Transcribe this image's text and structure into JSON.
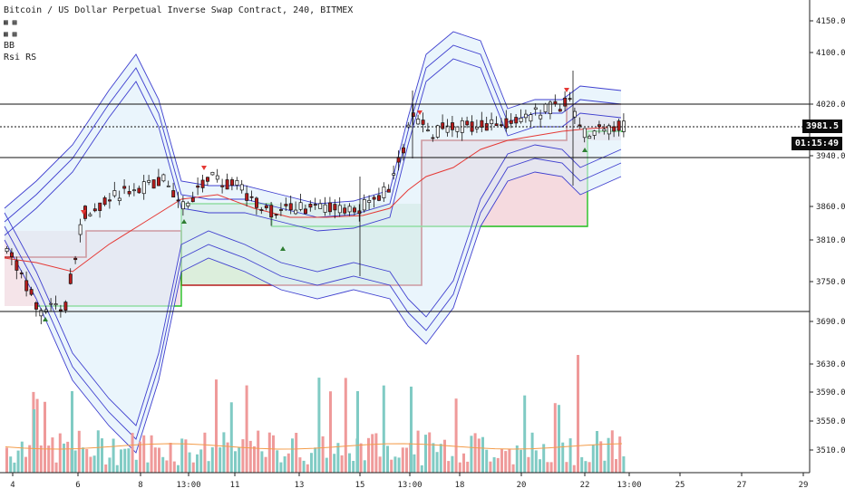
{
  "header": {
    "title": "Bitcoin / US Dollar Perpetual Inverse Swap Contract, 240, BITMEX",
    "indicator_1": "BB",
    "indicator_2": "Rsi RS"
  },
  "price_badge": "3981.5",
  "timer_badge": "01:15:49",
  "chart_data": {
    "type": "candlestick",
    "y_axis_ticks": [
      "4150.0",
      "4100.0",
      "4020.0",
      "3940.0",
      "3860.0",
      "3810.0",
      "3750.0",
      "3690.0",
      "3630.0",
      "3590.0",
      "3550.0",
      "3510.0"
    ],
    "x_axis_ticks": [
      "4",
      "6",
      "8",
      "13:00",
      "11",
      "13",
      "15",
      "13:00",
      "18",
      "20",
      "22",
      "13:00",
      "25",
      "27",
      "29"
    ],
    "horizontal_levels": [
      4020.0,
      3940.0,
      3695.0
    ],
    "current_price": 3981.5,
    "colors": {
      "up": "#26a69a",
      "down": "#b71c1c",
      "bb": "#3f3fcf",
      "basis": "#e53935",
      "support": "#22c322"
    }
  }
}
